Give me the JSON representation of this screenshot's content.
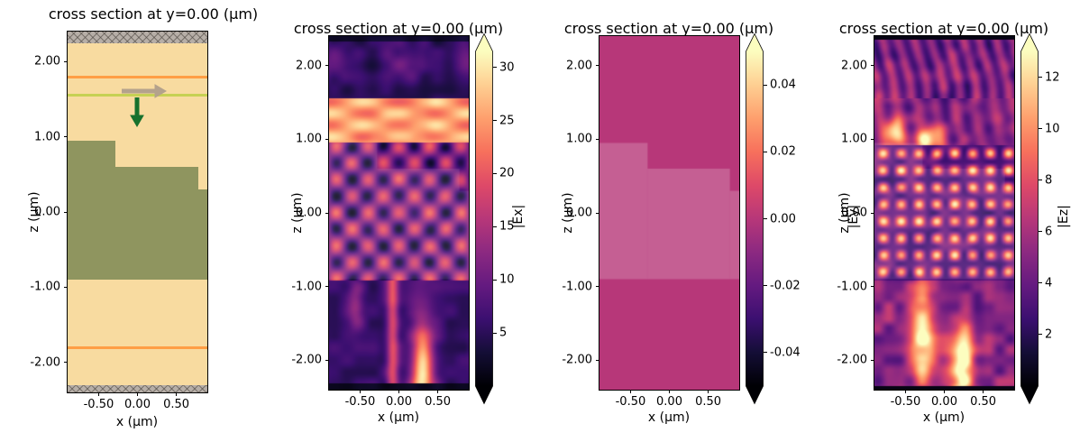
{
  "shared": {
    "title": "cross section at y=0.00 (µm)",
    "xlabel": "x (µm)",
    "ylabel": "z (µm)",
    "xtick_values": [
      -0.5,
      0.0,
      0.5
    ],
    "xtick_labels": [
      "-0.50",
      "0.00",
      "0.50"
    ],
    "ztick_values": [
      2.0,
      1.0,
      0.0,
      -1.0,
      -2.0
    ],
    "ztick_labels": [
      "2.00",
      "1.00",
      "0.00",
      "-1.00",
      "-2.00"
    ]
  },
  "chart_data": [
    {
      "type": "heatmap",
      "role": "structure-cross-section",
      "title": "cross section at y=0.00 (µm)",
      "xlabel": "x (µm)",
      "ylabel": "z (µm)",
      "xlim": [
        -0.9,
        0.9
      ],
      "zlim": [
        -2.4,
        2.4
      ],
      "background_medium_color": "#f8dba0",
      "pml_bands": {
        "color": "#b6aea7",
        "hatch": "x",
        "top_z": [
          2.25,
          2.4
        ],
        "bottom_z": [
          -2.4,
          -2.3
        ]
      },
      "monitor_lines": {
        "color": "#ff9e45",
        "z_positions": [
          1.8,
          -1.8
        ]
      },
      "source_line": {
        "color": "#c6d154",
        "z": 1.55
      },
      "structure": {
        "color": "#8f955f",
        "steps": [
          {
            "x": [
              -0.9,
              -0.28
            ],
            "z": [
              -0.9,
              0.95
            ]
          },
          {
            "x": [
              -0.28,
              0.78
            ],
            "z": [
              -0.9,
              0.6
            ]
          },
          {
            "x": [
              0.78,
              0.9
            ],
            "z": [
              -0.9,
              0.3
            ]
          }
        ]
      },
      "arrows": [
        {
          "name": "polarization-arrow",
          "direction": "right",
          "color": "#b4a28c",
          "x": 0.0,
          "z": 1.6
        },
        {
          "name": "propagation-arrow",
          "direction": "down",
          "color": "#17712d",
          "x": 0.0,
          "z": 1.4
        }
      ]
    },
    {
      "type": "heatmap",
      "role": "field-magnitude",
      "field": "|Ex|",
      "title": "cross section at y=0.00 (µm)",
      "xlabel": "x (µm)",
      "ylabel": "z (µm)",
      "xlim": [
        -0.9,
        0.9
      ],
      "zlim": [
        -2.4,
        2.4
      ],
      "colormap": "magma",
      "vmin": 0,
      "vmax": 31.5,
      "colorbar": {
        "label": "|Ex|",
        "tick_values": [
          30,
          25,
          20,
          15,
          10,
          5
        ],
        "tick_labels": [
          "30",
          "25",
          "20",
          "15",
          "10",
          "5"
        ],
        "extend": "both"
      },
      "pattern": "ex",
      "description": "bright band ~25-30 between z=0.95 and z=1.55, standing-wave interference stripes inside structure region -0.9<z<0.95, bright vertical streaks below z=-0.9, dark absorbing bands at the top and bottom edges"
    },
    {
      "type": "heatmap",
      "role": "field-magnitude",
      "field": "|Ey|",
      "title": "cross section at y=0.00 (µm)",
      "xlabel": "x (µm)",
      "ylabel": "z (µm)",
      "xlim": [
        -0.9,
        0.9
      ],
      "zlim": [
        -2.4,
        2.4
      ],
      "colormap": "magma",
      "vmin": -0.05,
      "vmax": 0.05,
      "colorbar": {
        "label": "|Ey|",
        "tick_values": [
          0.04,
          0.02,
          0.0,
          -0.02,
          -0.04
        ],
        "tick_labels": [
          "0.04",
          "0.02",
          "0.00",
          "-0.02",
          "-0.04"
        ],
        "extend": "both"
      },
      "pattern": "ey",
      "uniform_value": 0.0,
      "description": "field is essentially zero everywhere: uniform mid-scale magenta with a faint lighter overlay where the structure sits"
    },
    {
      "type": "heatmap",
      "role": "field-magnitude",
      "field": "|Ez|",
      "title": "cross section at y=0.00 (µm)",
      "xlabel": "x (µm)",
      "ylabel": "z (µm)",
      "xlim": [
        -0.9,
        0.9
      ],
      "zlim": [
        -2.4,
        2.4
      ],
      "colormap": "magma",
      "vmin": 0,
      "vmax": 13,
      "colorbar": {
        "label": "|Ez|",
        "tick_values": [
          12,
          10,
          8,
          6,
          4,
          2
        ],
        "tick_labels": [
          "12",
          "10",
          "8",
          "6",
          "4",
          "2"
        ],
        "extend": "both"
      },
      "pattern": "ez",
      "description": "speckled checkerboard interference inside the structure region, wavy vertical purple streaks above it, strong bright streaks below z=-0.9, black band at the very bottom"
    }
  ]
}
